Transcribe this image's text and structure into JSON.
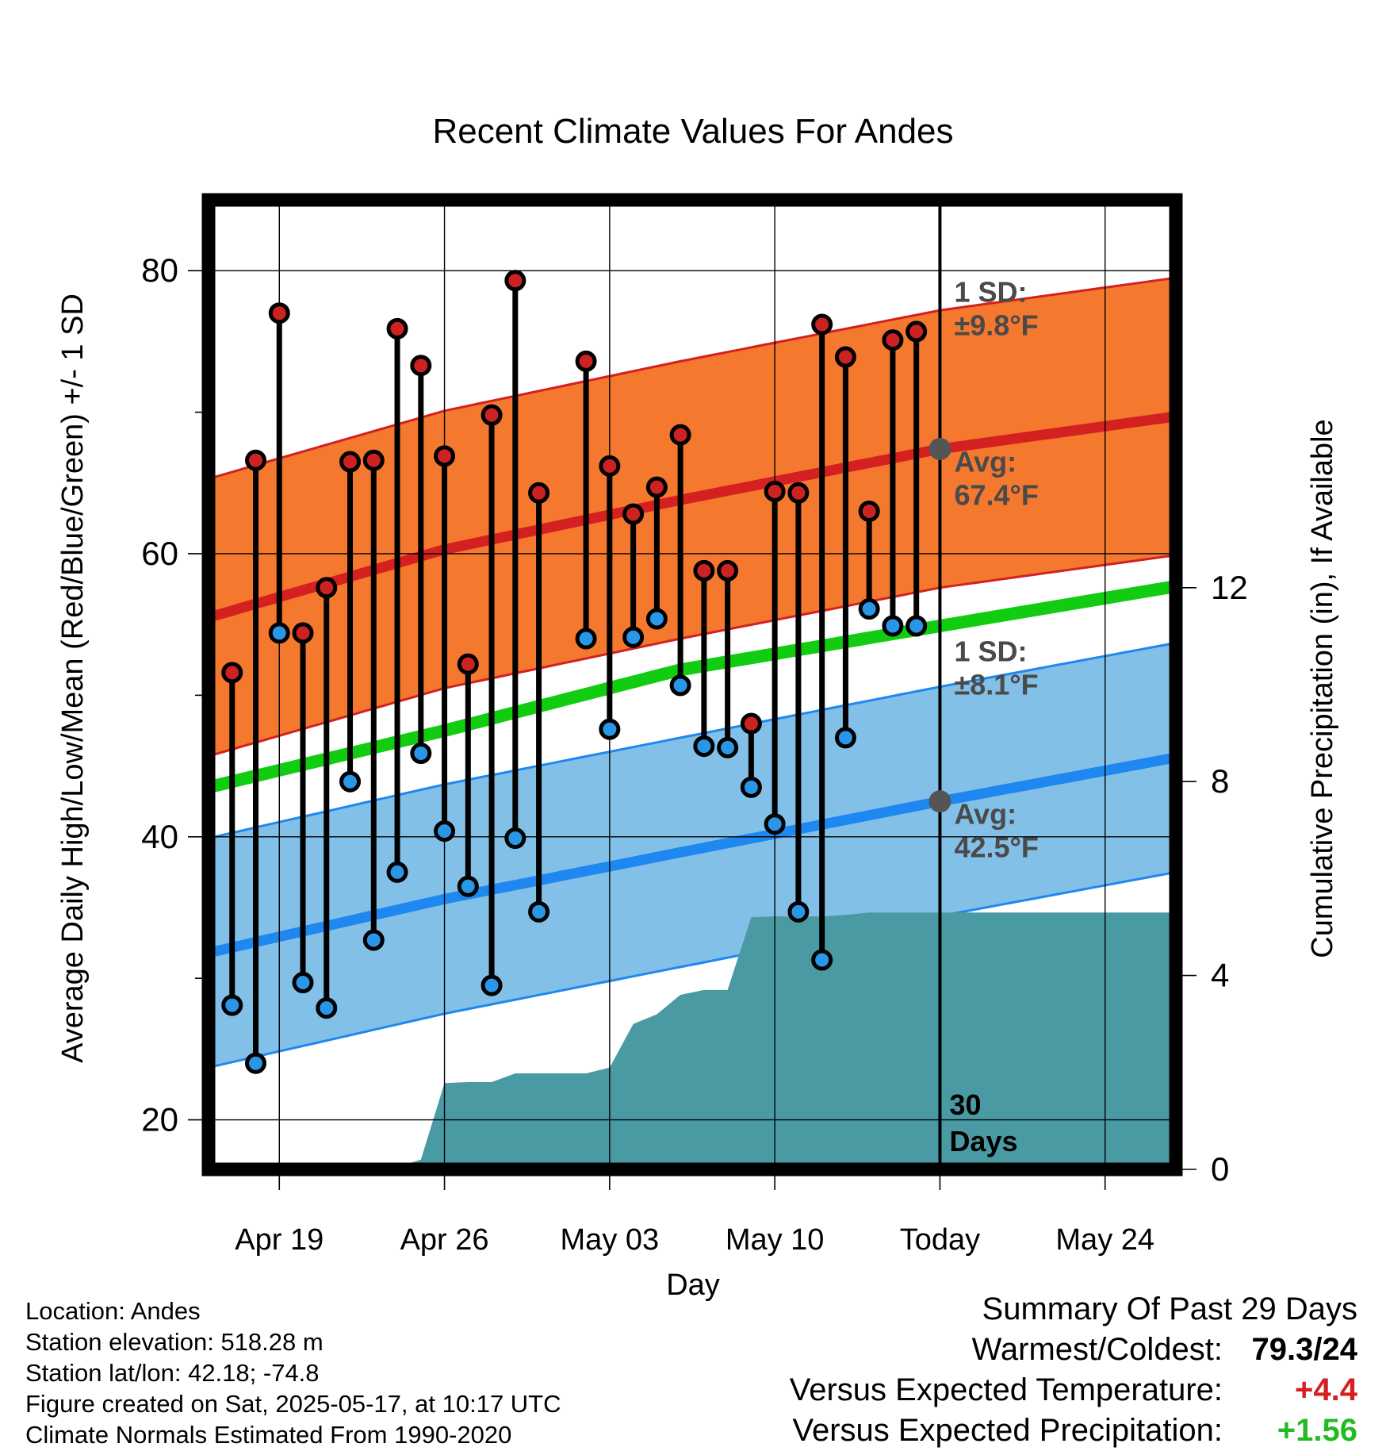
{
  "chart_data": {
    "type": "line",
    "title": "Recent Climate Values For Andes",
    "xlabel": "Day",
    "ylabel": "Average Daily High/Low/Mean (Red/Blue/Green) +/- 1 SD",
    "y2label": "Cumulative Precipitation (in), If Available",
    "x_tick_labels": [
      "Apr 19",
      "Apr 26",
      "May 03",
      "May 10",
      "Today",
      "May 24"
    ],
    "x_tick_dates": [
      "2025-04-19",
      "2025-04-26",
      "2025-05-03",
      "2025-05-10",
      "2025-05-17",
      "2025-05-24"
    ],
    "xlim": [
      "2025-04-16",
      "2025-05-27"
    ],
    "ylim": [
      16.5,
      85
    ],
    "y_ticks": [
      20,
      40,
      60,
      80
    ],
    "y2lim": [
      0,
      20
    ],
    "y2_ticks": [
      0,
      4,
      8,
      12
    ],
    "today": "2025-05-17",
    "today_label": "30\nDays",
    "colors": {
      "high_band": "#f4782e",
      "high_edge": "#d42020",
      "high_mean": "#d42020",
      "low_band": "#82c0e8",
      "low_edge": "#1e88f0",
      "low_mean": "#1e88f0",
      "mean_line": "#11cc11",
      "precip": "#4a9aa4",
      "high_dot": "#cc2222",
      "low_dot": "#2a96e8",
      "today_dot": "#555555"
    },
    "normals": {
      "dates": [
        "2025-04-16",
        "2025-04-26",
        "2025-05-06",
        "2025-05-17",
        "2025-05-27"
      ],
      "avg_high": [
        55.5,
        60.3,
        63.8,
        67.4,
        69.7
      ],
      "avg_low": [
        31.8,
        35.6,
        38.9,
        42.5,
        45.6
      ],
      "avg_mean": [
        43.5,
        47.5,
        51.8,
        54.9,
        57.7
      ]
    },
    "sd_high": 9.8,
    "sd_low": 8.1,
    "annotations": {
      "high_sd": "1 SD:\n±9.8°F",
      "high_avg": "Avg:\n67.4°F",
      "low_sd": "1 SD:\n±8.1°F",
      "low_avg": "Avg:\n42.5°F"
    },
    "series": [
      {
        "name": "Daily High",
        "dates": [
          "2025-04-17",
          "2025-04-18",
          "2025-04-19",
          "2025-04-20",
          "2025-04-21",
          "2025-04-22",
          "2025-04-23",
          "2025-04-24",
          "2025-04-25",
          "2025-04-26",
          "2025-04-27",
          "2025-04-28",
          "2025-04-29",
          "2025-04-30",
          "2025-05-02",
          "2025-05-03",
          "2025-05-04",
          "2025-05-05",
          "2025-05-06",
          "2025-05-07",
          "2025-05-08",
          "2025-05-09",
          "2025-05-10",
          "2025-05-11",
          "2025-05-12",
          "2025-05-13",
          "2025-05-14",
          "2025-05-15",
          "2025-05-16"
        ],
        "values": [
          51.6,
          66.6,
          77.0,
          54.4,
          57.6,
          66.5,
          66.6,
          75.9,
          73.3,
          66.9,
          52.2,
          69.8,
          79.3,
          64.3,
          73.6,
          66.2,
          62.8,
          64.7,
          68.4,
          58.8,
          58.8,
          48.0,
          64.4,
          64.3,
          76.2,
          73.9,
          63.0,
          75.1,
          75.7
        ]
      },
      {
        "name": "Daily Low",
        "dates": [
          "2025-04-17",
          "2025-04-18",
          "2025-04-19",
          "2025-04-20",
          "2025-04-21",
          "2025-04-22",
          "2025-04-23",
          "2025-04-24",
          "2025-04-25",
          "2025-04-26",
          "2025-04-27",
          "2025-04-28",
          "2025-04-29",
          "2025-04-30",
          "2025-05-02",
          "2025-05-03",
          "2025-05-04",
          "2025-05-05",
          "2025-05-06",
          "2025-05-07",
          "2025-05-08",
          "2025-05-09",
          "2025-05-10",
          "2025-05-11",
          "2025-05-12",
          "2025-05-13",
          "2025-05-14",
          "2025-05-15",
          "2025-05-16"
        ],
        "values": [
          28.1,
          24.0,
          54.4,
          29.7,
          27.9,
          43.9,
          32.7,
          37.5,
          45.9,
          40.4,
          36.5,
          29.5,
          39.9,
          34.7,
          54.0,
          47.6,
          54.1,
          55.4,
          50.7,
          46.4,
          46.3,
          43.5,
          40.9,
          34.7,
          31.3,
          47.0,
          56.1,
          54.9,
          54.9
        ]
      },
      {
        "name": "Cumulative Precipitation",
        "dates": [
          "2025-04-16",
          "2025-04-17",
          "2025-04-18",
          "2025-04-19",
          "2025-04-20",
          "2025-04-21",
          "2025-04-22",
          "2025-04-23",
          "2025-04-24",
          "2025-04-25",
          "2025-04-26",
          "2025-04-27",
          "2025-04-28",
          "2025-04-29",
          "2025-04-30",
          "2025-05-01",
          "2025-05-02",
          "2025-05-03",
          "2025-05-04",
          "2025-05-05",
          "2025-05-06",
          "2025-05-07",
          "2025-05-08",
          "2025-05-09",
          "2025-05-10",
          "2025-05-11",
          "2025-05-12",
          "2025-05-13",
          "2025-05-14",
          "2025-05-15",
          "2025-05-16",
          "2025-05-17",
          "2025-05-27"
        ],
        "values": [
          0,
          0,
          0,
          0.05,
          0.05,
          0.05,
          0.05,
          0.05,
          0.05,
          0.2,
          1.78,
          1.8,
          1.8,
          1.98,
          1.98,
          1.98,
          1.98,
          2.1,
          3.0,
          3.2,
          3.6,
          3.7,
          3.7,
          5.2,
          5.22,
          5.22,
          5.22,
          5.25,
          5.3,
          5.3,
          5.3,
          5.3,
          5.3
        ]
      }
    ]
  },
  "footer": {
    "location": "Location: Andes",
    "elevation": "Station elevation: 518.28 m",
    "latlon": "Station lat/lon: 42.18; -74.8",
    "created": "Figure created on Sat, 2025-05-17, at 10:17 UTC",
    "normals": "Climate Normals Estimated From 1990-2020"
  },
  "summary": {
    "title": "Summary Of Past 29 Days",
    "warm_cold_label": "Warmest/Coldest:",
    "warm_cold_value": "79.3/24",
    "temp_label": "Versus Expected Temperature:",
    "temp_value": "+4.4",
    "temp_color": "#d42020",
    "precip_label": "Versus Expected Precipitation:",
    "precip_value": "+1.56",
    "precip_color": "#22bb22"
  }
}
